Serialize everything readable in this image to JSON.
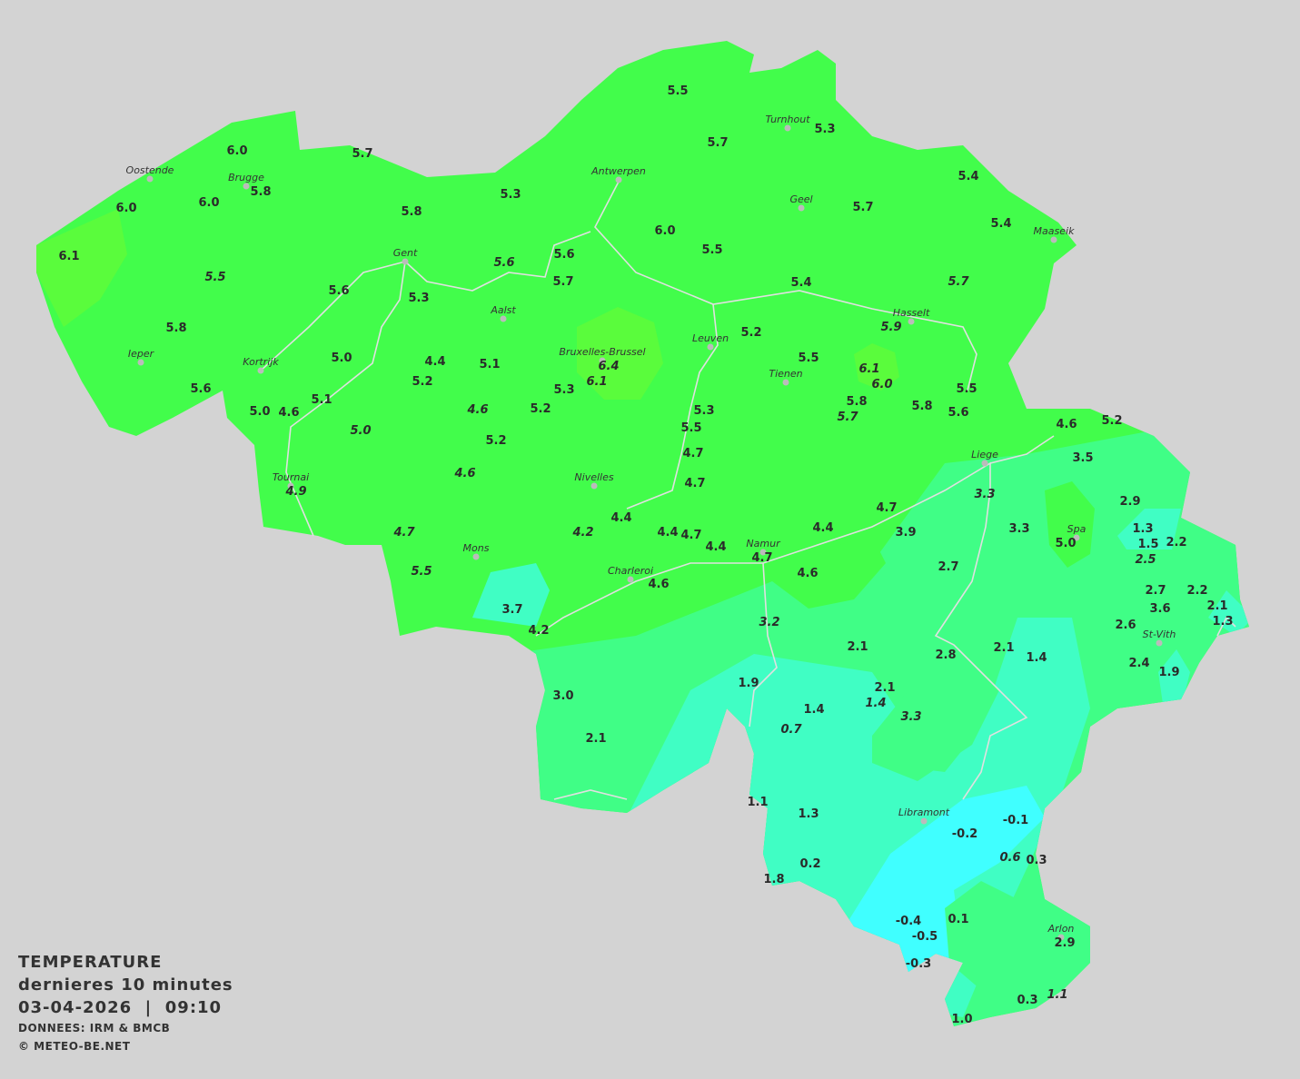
{
  "legend": {
    "title": "TEMPERATURE",
    "period": "dernieres 10 minutes",
    "datetime": "03-04-2026  |  09:10",
    "source": "DONNEES: IRM & BMCB",
    "copyright": "© METEO-BE.NET"
  },
  "colors": {
    "background": "#d3d3d3",
    "zone_4_6": "#42fd4b",
    "zone_6_plus": "#5afc3c",
    "zone_2_4": "#40fe86",
    "zone_0_2": "#40fec4",
    "zone_below_0": "#40ffff",
    "rivers": "#e0e0e0"
  },
  "cities": [
    "Oostende",
    "Brugge",
    "Antwerpen",
    "Turnhout",
    "Geel",
    "Maaseik",
    "Gent",
    "Aalst",
    "Hasselt",
    "Leuven",
    "Bruxelles-Brussel",
    "Tienen",
    "Ieper",
    "Kortrijk",
    "Liege",
    "Tournai",
    "Nivelles",
    "Spa",
    "Mons",
    "Namur",
    "Charleroi",
    "St-Vith",
    "Libramont",
    "Arlon"
  ],
  "stations": [
    {
      "v": "5.5"
    },
    {
      "v": "5.7"
    },
    {
      "v": "5.3"
    },
    {
      "v": "6.0"
    },
    {
      "v": "5.7"
    },
    {
      "v": "6.0"
    },
    {
      "v": "6.0"
    },
    {
      "v": "5.8"
    },
    {
      "v": "5.3"
    },
    {
      "v": "5.8"
    },
    {
      "v": "5.4"
    },
    {
      "v": "5.7"
    },
    {
      "v": "5.4"
    },
    {
      "v": "6.0"
    },
    {
      "v": "5.5"
    },
    {
      "v": "6.1"
    },
    {
      "v": "5.5",
      "i": true
    },
    {
      "v": "5.6",
      "i": true
    },
    {
      "v": "5.6"
    },
    {
      "v": "5.7"
    },
    {
      "v": "5.6"
    },
    {
      "v": "5.3"
    },
    {
      "v": "5.4"
    },
    {
      "v": "5.7",
      "i": true
    },
    {
      "v": "5.2"
    },
    {
      "v": "5.9",
      "i": true
    },
    {
      "v": "5.8"
    },
    {
      "v": "5.0"
    },
    {
      "v": "4.4"
    },
    {
      "v": "5.1"
    },
    {
      "v": "6.4",
      "i": true
    },
    {
      "v": "6.1",
      "i": true
    },
    {
      "v": "5.5"
    },
    {
      "v": "6.1",
      "i": true
    },
    {
      "v": "6.0",
      "i": true
    },
    {
      "v": "5.2"
    },
    {
      "v": "5.3"
    },
    {
      "v": "5.6"
    },
    {
      "v": "5.1"
    },
    {
      "v": "4.6",
      "i": true
    },
    {
      "v": "5.2"
    },
    {
      "v": "5.3"
    },
    {
      "v": "5.8"
    },
    {
      "v": "5.7",
      "i": true
    },
    {
      "v": "5.8"
    },
    {
      "v": "5.5"
    },
    {
      "v": "5.6"
    },
    {
      "v": "5.0"
    },
    {
      "v": "4.6"
    },
    {
      "v": "5.0",
      "i": true
    },
    {
      "v": "5.5"
    },
    {
      "v": "5.2"
    },
    {
      "v": "4.6"
    },
    {
      "v": "5.2"
    },
    {
      "v": "4.7"
    },
    {
      "v": "3.5"
    },
    {
      "v": "4.6",
      "i": true
    },
    {
      "v": "4.7"
    },
    {
      "v": "4.9",
      "i": true
    },
    {
      "v": "3.3",
      "i": true
    },
    {
      "v": "2.9"
    },
    {
      "v": "4.4"
    },
    {
      "v": "4.7"
    },
    {
      "v": "5.0"
    },
    {
      "v": "3.3"
    },
    {
      "v": "1.3"
    },
    {
      "v": "1.5"
    },
    {
      "v": "2.2"
    },
    {
      "v": "2.5",
      "i": true
    },
    {
      "v": "4.7",
      "i": true
    },
    {
      "v": "4.2",
      "i": true
    },
    {
      "v": "4.4"
    },
    {
      "v": "4.7"
    },
    {
      "v": "4.4"
    },
    {
      "v": "4.7"
    },
    {
      "v": "4.4"
    },
    {
      "v": "3.9"
    },
    {
      "v": "2.7"
    },
    {
      "v": "5.5",
      "i": true
    },
    {
      "v": "4.6"
    },
    {
      "v": "4.6"
    },
    {
      "v": "3.7"
    },
    {
      "v": "2.7"
    },
    {
      "v": "2.2"
    },
    {
      "v": "2.1"
    },
    {
      "v": "1.3"
    },
    {
      "v": "3.6"
    },
    {
      "v": "3.2",
      "i": true
    },
    {
      "v": "4.2"
    },
    {
      "v": "2.6"
    },
    {
      "v": "2.1"
    },
    {
      "v": "2.1"
    },
    {
      "v": "2.8"
    },
    {
      "v": "1.4"
    },
    {
      "v": "2.4"
    },
    {
      "v": "1.9"
    },
    {
      "v": "1.9"
    },
    {
      "v": "2.1"
    },
    {
      "v": "1.4",
      "i": true
    },
    {
      "v": "3.0"
    },
    {
      "v": "1.4"
    },
    {
      "v": "3.3",
      "i": true
    },
    {
      "v": "0.7",
      "i": true
    },
    {
      "v": "2.1"
    },
    {
      "v": "1.1"
    },
    {
      "v": "1.3"
    },
    {
      "v": "-0.1"
    },
    {
      "v": "-0.2"
    },
    {
      "v": "0.6",
      "i": true
    },
    {
      "v": "0.3"
    },
    {
      "v": "0.2"
    },
    {
      "v": "1.8"
    },
    {
      "v": "0.1"
    },
    {
      "v": "-0.4"
    },
    {
      "v": "-0.5"
    },
    {
      "v": "2.9"
    },
    {
      "v": "-0.3"
    },
    {
      "v": "0.3"
    },
    {
      "v": "1.1",
      "i": true
    },
    {
      "v": "1.0"
    }
  ]
}
